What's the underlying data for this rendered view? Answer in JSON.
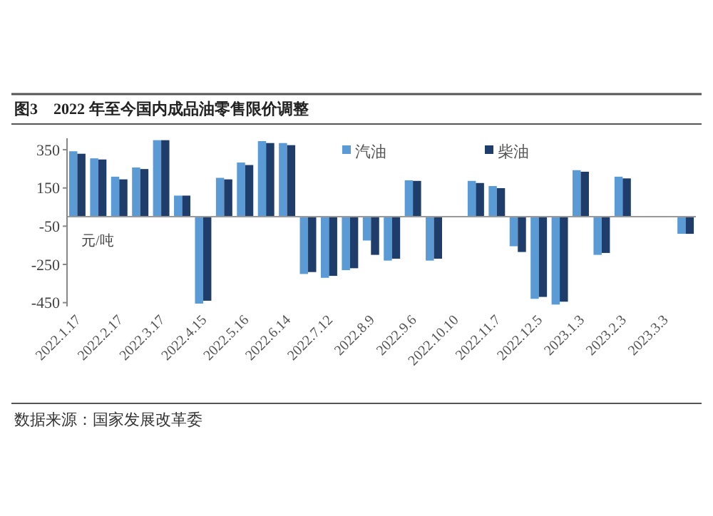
{
  "chart_data": {
    "type": "bar",
    "title": "图3　2022 年至今国内成品油零售限价调整",
    "ylabel": "元/吨",
    "categories": [
      "2022.1.17",
      null,
      "2022.2.17",
      null,
      "2022.3.17",
      null,
      "2022.4.15",
      null,
      "2022.5.16",
      null,
      "2022.6.14",
      null,
      "2022.7.12",
      null,
      "2022.8.9",
      null,
      "2022.9.6",
      null,
      "2022.10.10",
      null,
      "2022.11.7",
      null,
      "2022.12.5",
      null,
      "2023.1.3",
      null,
      "2023.2.3",
      null,
      "2023.3.3",
      null
    ],
    "series": [
      {
        "name": "汽油",
        "color": "#5b9bd5",
        "values": [
          342,
          305,
          209,
          257,
          400,
          110,
          -455,
          203,
          283,
          395,
          385,
          -300,
          -320,
          -280,
          -125,
          -230,
          190,
          -230,
          null,
          187,
          160,
          -155,
          -430,
          -460,
          243,
          -200,
          209,
          null,
          null,
          -90
        ]
      },
      {
        "name": "柴油",
        "color": "#1f3d6b",
        "values": [
          329,
          299,
          195,
          249,
          400,
          110,
          -440,
          195,
          270,
          385,
          374,
          -290,
          -310,
          -270,
          -200,
          -220,
          187,
          -220,
          null,
          176,
          149,
          -185,
          -420,
          -445,
          235,
          -190,
          200,
          null,
          null,
          -90
        ]
      }
    ],
    "ylim": [
      -470,
      410
    ],
    "yticks": [
      350,
      150,
      -50,
      -250,
      -450
    ],
    "grid": false,
    "legend": "top right",
    "annotations": [
      "数据来源：国家发展改革委"
    ]
  }
}
